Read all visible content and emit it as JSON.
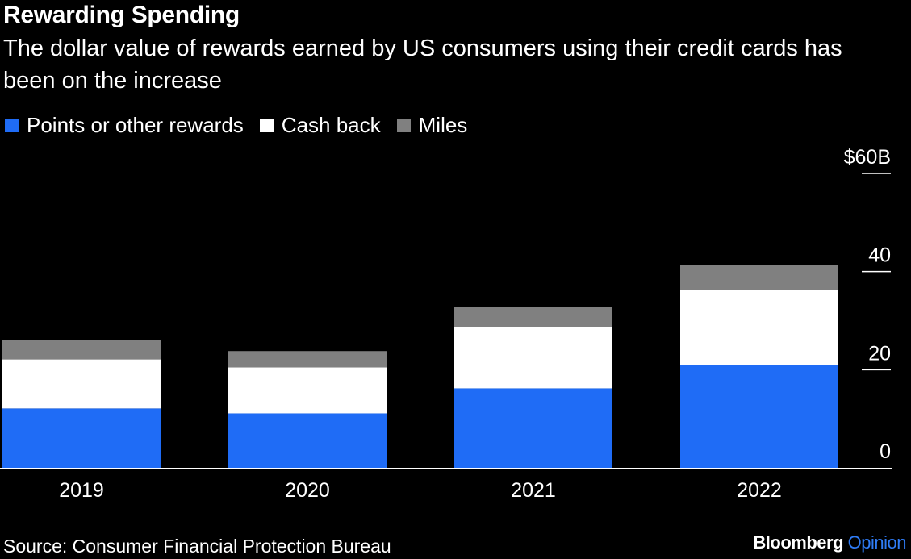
{
  "header": {
    "title": "Rewarding Spending",
    "subtitle": "The dollar value of rewards earned by US consumers using their credit cards has been on the increase"
  },
  "footer": {
    "source": "Source: Consumer Financial Protection Bureau",
    "brand_main": "Bloomberg",
    "brand_accent": "Opinion"
  },
  "colors": {
    "background": "#000000",
    "points": "#1f6cf6",
    "cash_back": "#ffffff",
    "miles": "#808080",
    "brand_accent": "#2f7cf6"
  },
  "chart_data": {
    "type": "bar",
    "stacked": true,
    "categories": [
      "2019",
      "2020",
      "2021",
      "2022"
    ],
    "series": [
      {
        "name": "Points or other rewards",
        "values": [
          12.1,
          11.1,
          16.2,
          21.0
        ],
        "color": "#1f6cf6"
      },
      {
        "name": "Cash back",
        "values": [
          10.0,
          9.4,
          12.5,
          15.3
        ],
        "color": "#ffffff"
      },
      {
        "name": "Miles",
        "values": [
          4.0,
          3.3,
          4.1,
          5.1
        ],
        "color": "#808080"
      }
    ],
    "ylim": [
      0,
      60
    ],
    "yticks": [
      0,
      20,
      40,
      60
    ],
    "ytick_labels": [
      "0",
      "20",
      "40",
      "$60B"
    ],
    "y_axis_side": "right",
    "legend_position": "top-left",
    "grid": false
  }
}
